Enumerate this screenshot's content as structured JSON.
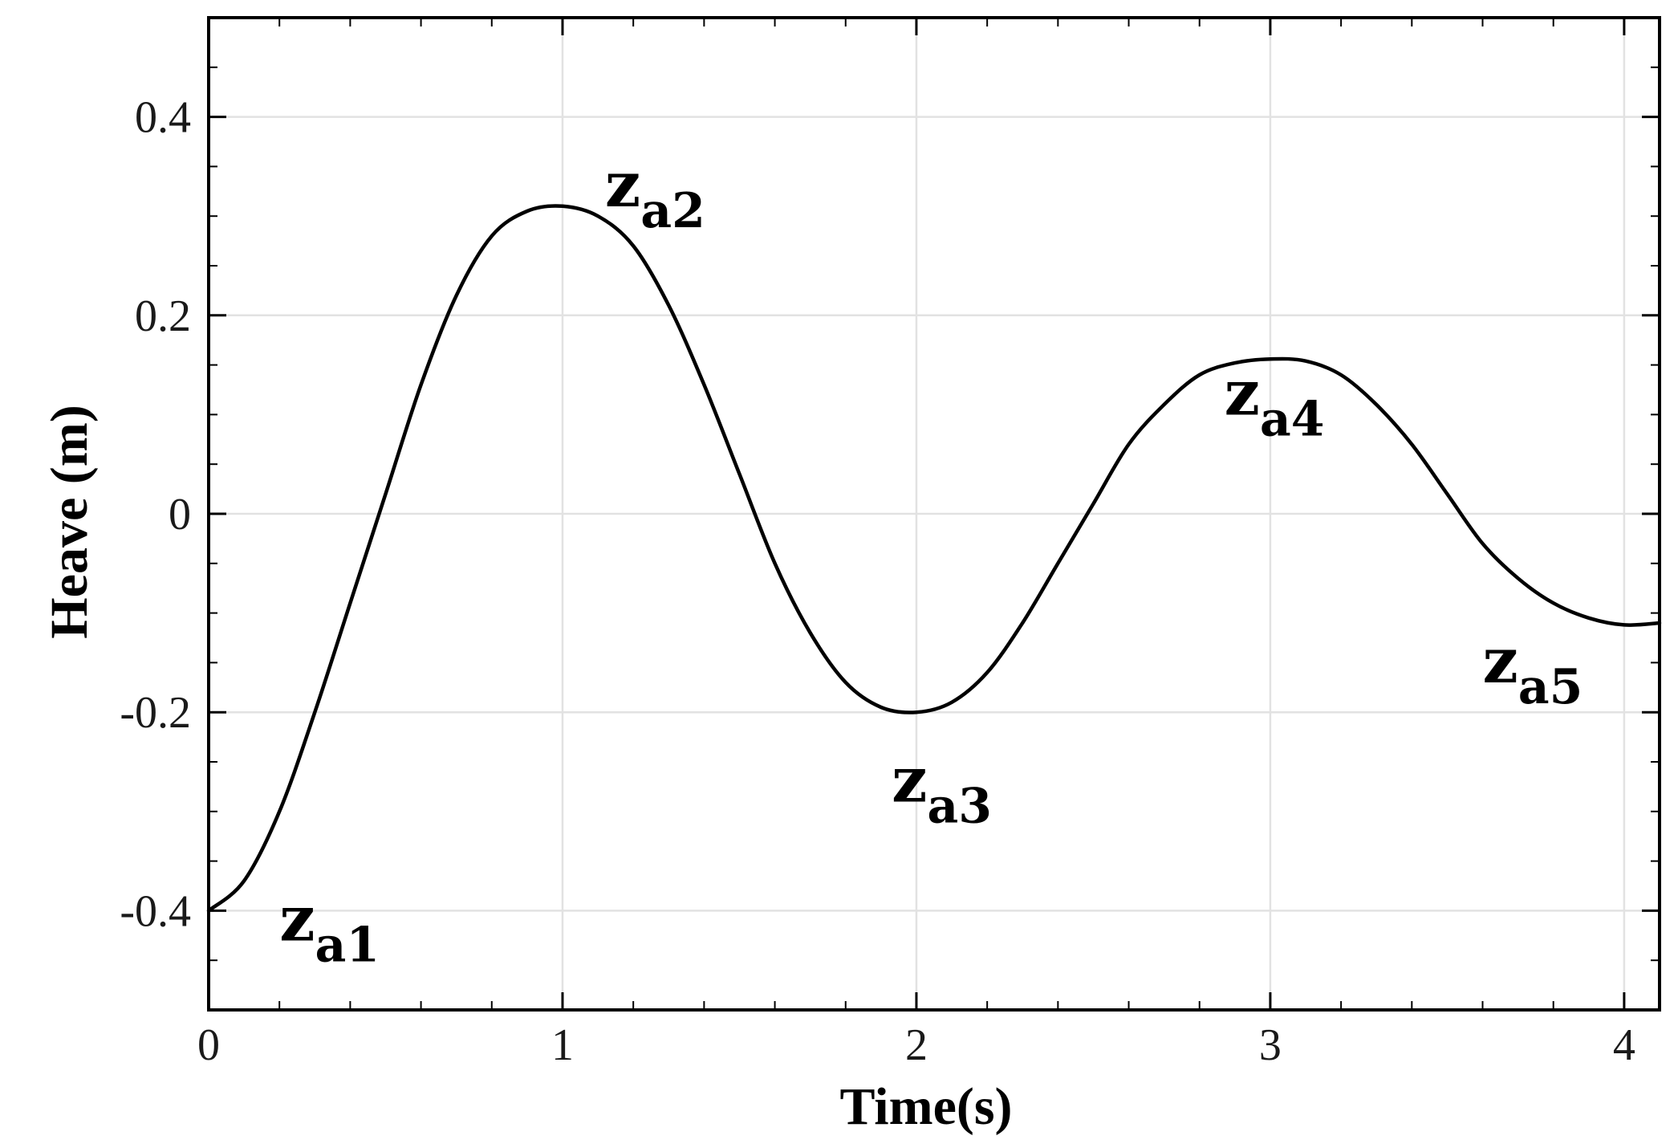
{
  "chart_data": {
    "type": "line",
    "title": "",
    "xlabel": "Time(s)",
    "ylabel": "Heave (m)",
    "xlim": [
      0,
      4.1
    ],
    "ylim": [
      -0.5,
      0.5
    ],
    "xticks": [
      0,
      1,
      2,
      3,
      4
    ],
    "xtick_labels": [
      "0",
      "1",
      "2",
      "3",
      "4"
    ],
    "yticks": [
      -0.4,
      -0.2,
      0,
      0.2,
      0.4
    ],
    "ytick_labels": [
      "-0.4",
      "-0.2",
      "0",
      "0.2",
      "0.4"
    ],
    "grid": true,
    "series": [
      {
        "color": "#000000",
        "points": [
          [
            0.0,
            -0.4
          ],
          [
            0.1,
            -0.37
          ],
          [
            0.2,
            -0.3
          ],
          [
            0.3,
            -0.2
          ],
          [
            0.4,
            -0.09
          ],
          [
            0.5,
            0.02
          ],
          [
            0.6,
            0.13
          ],
          [
            0.7,
            0.22
          ],
          [
            0.8,
            0.28
          ],
          [
            0.9,
            0.305
          ],
          [
            1.0,
            0.31
          ],
          [
            1.1,
            0.3
          ],
          [
            1.2,
            0.27
          ],
          [
            1.3,
            0.21
          ],
          [
            1.4,
            0.13
          ],
          [
            1.5,
            0.04
          ],
          [
            1.6,
            -0.05
          ],
          [
            1.7,
            -0.12
          ],
          [
            1.8,
            -0.17
          ],
          [
            1.9,
            -0.195
          ],
          [
            2.0,
            -0.2
          ],
          [
            2.1,
            -0.19
          ],
          [
            2.2,
            -0.16
          ],
          [
            2.3,
            -0.11
          ],
          [
            2.4,
            -0.05
          ],
          [
            2.5,
            0.01
          ],
          [
            2.6,
            0.07
          ],
          [
            2.7,
            0.11
          ],
          [
            2.8,
            0.14
          ],
          [
            2.9,
            0.152
          ],
          [
            3.0,
            0.156
          ],
          [
            3.1,
            0.154
          ],
          [
            3.2,
            0.14
          ],
          [
            3.3,
            0.11
          ],
          [
            3.4,
            0.07
          ],
          [
            3.5,
            0.02
          ],
          [
            3.6,
            -0.03
          ],
          [
            3.7,
            -0.065
          ],
          [
            3.8,
            -0.09
          ],
          [
            3.9,
            -0.105
          ],
          [
            4.0,
            -0.112
          ],
          [
            4.1,
            -0.11
          ]
        ]
      }
    ],
    "annotations": [
      {
        "main": "z",
        "sub": "a1",
        "x": 0.2,
        "y": -0.43
      },
      {
        "main": "z",
        "sub": "a2",
        "x": 1.12,
        "y": 0.31
      },
      {
        "main": "z",
        "sub": "a3",
        "x": 1.93,
        "y": -0.29
      },
      {
        "main": "z",
        "sub": "a4",
        "x": 2.87,
        "y": 0.1
      },
      {
        "main": "z",
        "sub": "a5",
        "x": 3.6,
        "y": -0.17
      }
    ]
  }
}
